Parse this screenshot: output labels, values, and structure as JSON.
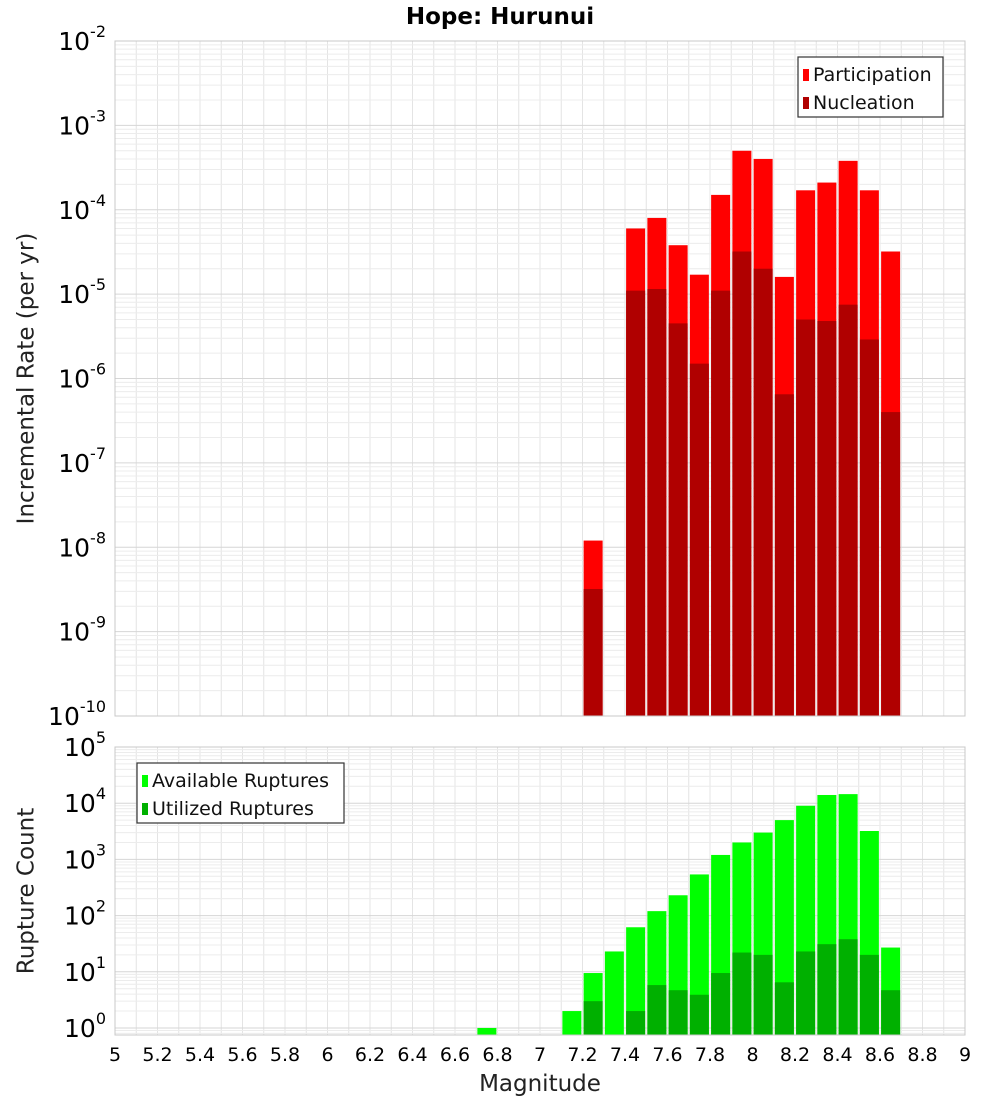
{
  "chart_data": [
    {
      "type": "bar",
      "title": "Hope: Hurunui",
      "xlabel": "",
      "ylabel": "Incremental Rate (per yr)",
      "yscale": "log",
      "ylim": [
        1e-10,
        0.01
      ],
      "xlim": [
        5,
        9
      ],
      "y_ticks": [
        {
          "base": "10",
          "exp": "-10"
        },
        {
          "base": "10",
          "exp": "-9"
        },
        {
          "base": "10",
          "exp": "-8"
        },
        {
          "base": "10",
          "exp": "-7"
        },
        {
          "base": "10",
          "exp": "-6"
        },
        {
          "base": "10",
          "exp": "-5"
        },
        {
          "base": "10",
          "exp": "-4"
        },
        {
          "base": "10",
          "exp": "-3"
        },
        {
          "base": "10",
          "exp": "-2"
        }
      ],
      "grid": true,
      "legend_position": "top-right",
      "colors": {
        "participation": "#ff0000",
        "nucleation": "#b00000"
      },
      "series": [
        {
          "name": "Participation",
          "x": [
            7.25,
            7.45,
            7.55,
            7.65,
            7.75,
            7.85,
            7.95,
            8.05,
            8.15,
            8.25,
            8.35,
            8.45,
            8.55,
            8.65
          ],
          "values": [
            1.2e-08,
            6e-05,
            8e-05,
            3.8e-05,
            1.7e-05,
            0.00015,
            0.0005,
            0.0004,
            1.6e-05,
            0.00017,
            0.00021,
            0.00038,
            0.00017,
            3.2e-05
          ]
        },
        {
          "name": "Nucleation",
          "x": [
            7.25,
            7.45,
            7.55,
            7.65,
            7.75,
            7.85,
            7.95,
            8.05,
            8.15,
            8.25,
            8.35,
            8.45,
            8.55,
            8.65
          ],
          "values": [
            3.2e-09,
            1.1e-05,
            1.15e-05,
            4.5e-06,
            1.5e-06,
            1.1e-05,
            3.2e-05,
            2e-05,
            6.5e-07,
            5e-06,
            4.8e-06,
            7.5e-06,
            2.9e-06,
            4e-07
          ]
        }
      ]
    },
    {
      "type": "bar",
      "title": "",
      "xlabel": "Magnitude",
      "ylabel": "Rupture Count",
      "yscale": "log",
      "ylim": [
        0.75,
        100000.0
      ],
      "xlim": [
        5,
        9
      ],
      "x_ticks": [
        "5",
        "5.2",
        "5.4",
        "5.6",
        "5.8",
        "6",
        "6.2",
        "6.4",
        "6.6",
        "6.8",
        "7",
        "7.2",
        "7.4",
        "7.6",
        "7.8",
        "8",
        "8.2",
        "8.4",
        "8.6",
        "8.8",
        "9"
      ],
      "y_ticks": [
        {
          "base": "10",
          "exp": "0"
        },
        {
          "base": "10",
          "exp": "1"
        },
        {
          "base": "10",
          "exp": "2"
        },
        {
          "base": "10",
          "exp": "3"
        },
        {
          "base": "10",
          "exp": "4"
        },
        {
          "base": "10",
          "exp": "5"
        }
      ],
      "grid": true,
      "legend_position": "top-left",
      "colors": {
        "available": "#00ff00",
        "utilized": "#00b000"
      },
      "series": [
        {
          "name": "Available Ruptures",
          "x": [
            6.75,
            7.15,
            7.25,
            7.35,
            7.45,
            7.55,
            7.65,
            7.75,
            7.85,
            7.95,
            8.05,
            8.15,
            8.25,
            8.35,
            8.45,
            8.55,
            8.65
          ],
          "values": [
            1,
            2,
            9.5,
            23,
            62,
            120,
            230,
            540,
            1200,
            2000,
            3000,
            5000,
            9000,
            14000,
            14500,
            3200,
            27
          ]
        },
        {
          "name": "Utilized Ruptures",
          "x": [
            7.25,
            7.45,
            7.55,
            7.65,
            7.75,
            7.85,
            7.95,
            8.05,
            8.15,
            8.25,
            8.35,
            8.45,
            8.55,
            8.65
          ],
          "values": [
            3,
            2,
            5.8,
            4.7,
            3.9,
            9.5,
            22,
            20,
            6.5,
            23,
            31,
            38,
            20,
            4.7
          ]
        }
      ]
    }
  ]
}
